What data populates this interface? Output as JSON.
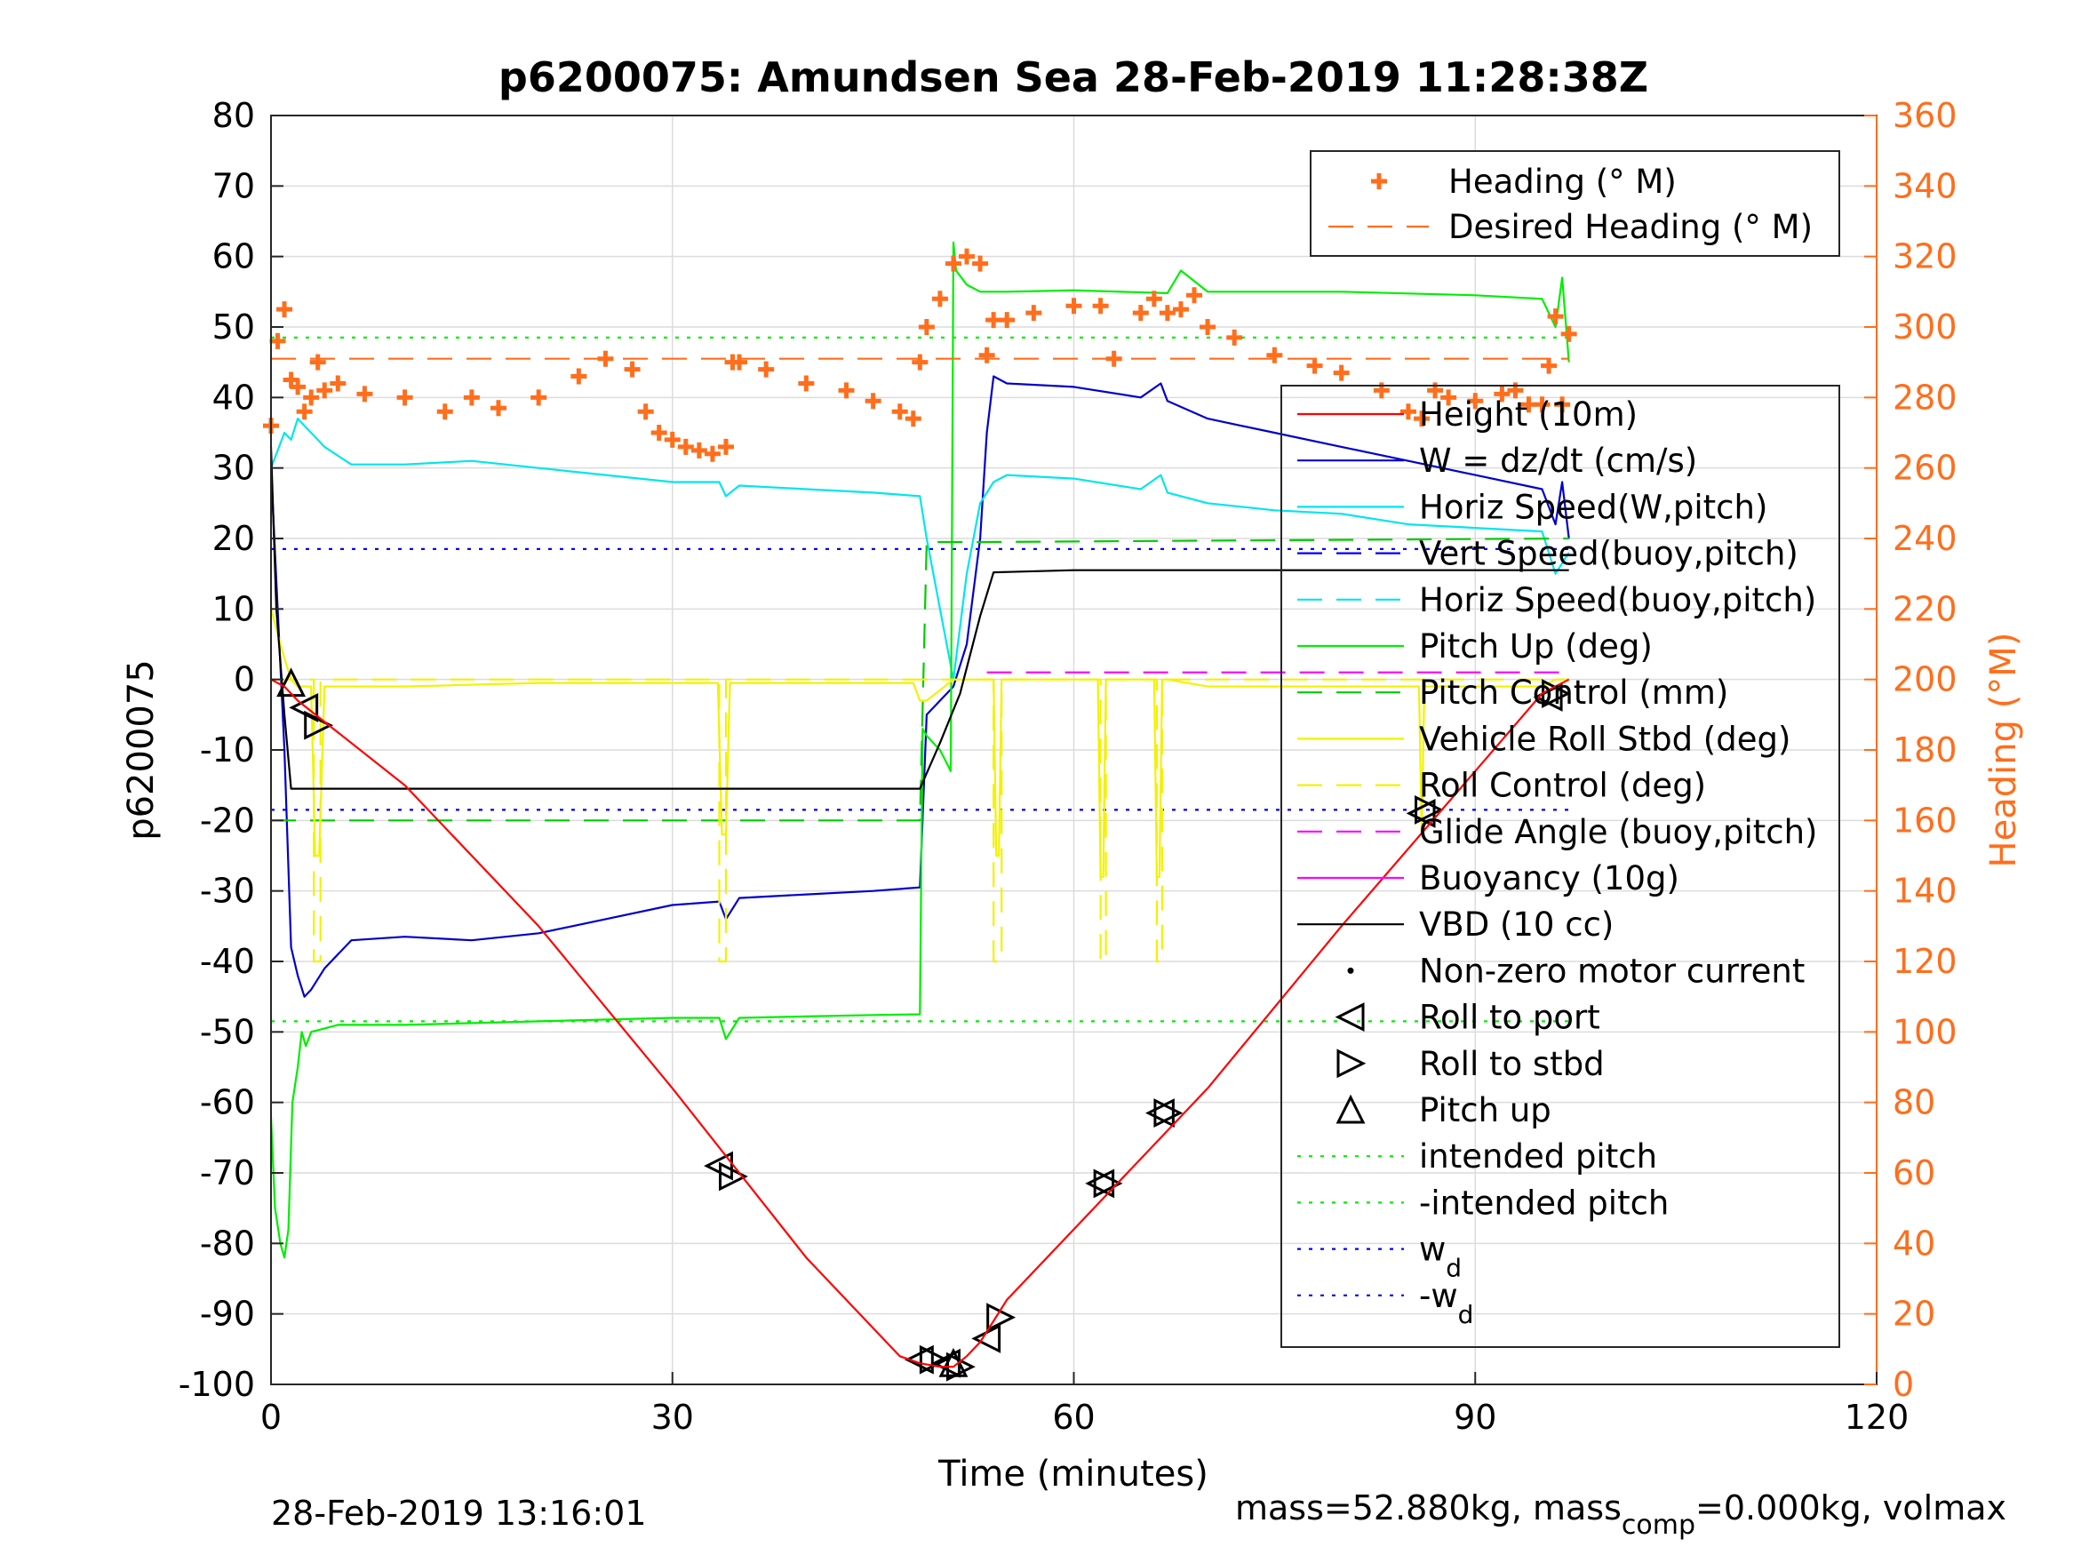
{
  "chart_data": {
    "type": "line",
    "title": "p6200075: Amundsen Sea 28-Feb-2019 11:28:38Z",
    "xlabel": "Time (minutes)",
    "ylabel": "p6200075",
    "y2label": "Heading (°M)",
    "xlim": [
      0,
      120
    ],
    "ylim": [
      -100,
      80
    ],
    "y2lim": [
      0,
      360
    ],
    "xticks": [
      "0",
      "30",
      "60",
      "90",
      "120"
    ],
    "yticks": [
      "80",
      "70",
      "60",
      "50",
      "40",
      "30",
      "20",
      "10",
      "0",
      "-10",
      "-20",
      "-30",
      "-40",
      "-50",
      "-60",
      "-70",
      "-80",
      "-90",
      "-100"
    ],
    "y2ticks": [
      "360",
      "340",
      "320",
      "300",
      "280",
      "260",
      "240",
      "220",
      "200",
      "180",
      "160",
      "140",
      "120",
      "100",
      "80",
      "60",
      "40",
      "20",
      "0"
    ],
    "grid": true,
    "footer_left": "28-Feb-2019 13:16:01",
    "footer_right": {
      "a": "mass=52.880kg, mass",
      "sub": "comp",
      "b": "=0.000kg, volmax"
    },
    "legend_top": {
      "placement": "top-right",
      "entries": [
        {
          "label": "Heading (° M)"
        },
        {
          "label": "Desired Heading (° M)"
        }
      ]
    },
    "legend": {
      "placement": "right",
      "entries": [
        {
          "label": "Height (10m)"
        },
        {
          "label": "W = dz/dt (cm/s)"
        },
        {
          "label": "Horiz Speed(W,pitch)"
        },
        {
          "label": "Vert Speed(buoy,pitch)"
        },
        {
          "label": "Horiz Speed(buoy,pitch)"
        },
        {
          "label": "Pitch Up (deg)"
        },
        {
          "label": "Pitch Control (mm)"
        },
        {
          "label": "Vehicle Roll Stbd (deg)"
        },
        {
          "label": "Roll Control (deg)"
        },
        {
          "label": "Glide Angle (buoy,pitch)"
        },
        {
          "label": "Buoyancy (10g)"
        },
        {
          "label": "VBD (10 cc)"
        },
        {
          "label": "Non-zero motor current"
        },
        {
          "label": "Roll to port"
        },
        {
          "label": "Roll to stbd"
        },
        {
          "label": "Pitch up"
        },
        {
          "label": "intended pitch"
        },
        {
          "label": "-intended pitch"
        },
        {
          "label": "w",
          "sub": "d"
        },
        {
          "label": "-w",
          "sub": "d"
        }
      ]
    },
    "series": [
      {
        "name": "Height (10m)",
        "color": "#ff0000",
        "axis": "left",
        "style": "solid",
        "x": [
          0,
          1,
          2,
          10,
          20,
          30,
          40,
          47,
          48.5,
          50,
          51,
          52,
          53,
          54,
          55,
          60,
          70,
          80,
          90,
          95,
          97
        ],
        "y": [
          0,
          -1,
          -3,
          -15,
          -35,
          -58,
          -82,
          -96,
          -97,
          -97.5,
          -97.5,
          -96,
          -94,
          -91,
          -88,
          -78,
          -58,
          -35,
          -13,
          -2,
          0
        ]
      },
      {
        "name": "W = dz/dt (cm/s)",
        "color": "#0000cc",
        "axis": "left",
        "style": "solid",
        "x": [
          0,
          0.5,
          1,
          1.5,
          2,
          2.5,
          3,
          4,
          6,
          10,
          15,
          20,
          25,
          30,
          33.5,
          34,
          35,
          40,
          45,
          48.5,
          49,
          50,
          51,
          52,
          53,
          53.5,
          54,
          55,
          60,
          65,
          66.5,
          67,
          70,
          75,
          80,
          85,
          90,
          95,
          96,
          96.5,
          97
        ],
        "y": [
          30,
          10,
          -10,
          -38,
          -42,
          -45,
          -44,
          -41,
          -37,
          -36.5,
          -37,
          -36,
          -34,
          -32,
          -31.5,
          -34,
          -31,
          -30.5,
          -30,
          -29.5,
          -5,
          -3,
          -1,
          5,
          20,
          35,
          43,
          42,
          41.5,
          40,
          42,
          39.5,
          37,
          35,
          33,
          31,
          29,
          27,
          22,
          28,
          20
        ]
      },
      {
        "name": "Horiz Speed(W,pitch)",
        "color": "#00e5ee",
        "axis": "left",
        "style": "solid",
        "x": [
          0,
          1,
          1.5,
          2,
          2.5,
          3,
          4,
          6,
          10,
          15,
          20,
          25,
          30,
          33.5,
          34,
          35,
          40,
          45,
          48.5,
          49,
          50,
          51,
          52,
          53,
          54,
          55,
          60,
          65,
          66.5,
          67,
          70,
          75,
          80,
          85,
          90,
          95,
          96,
          97
        ],
        "y": [
          30,
          35,
          34,
          37,
          36,
          35,
          33,
          30.5,
          30.5,
          31,
          30,
          29,
          28,
          28,
          26,
          27.5,
          27,
          26.5,
          26,
          20,
          10,
          0,
          15,
          25,
          28,
          29,
          28.5,
          27,
          29,
          26.5,
          25,
          24,
          23.5,
          22,
          21.5,
          21,
          15,
          18
        ]
      },
      {
        "name": "Vert Speed(buoy,pitch)",
        "color": "#0000ff",
        "axis": "left",
        "style": "dotted",
        "x": [
          0,
          97
        ],
        "y": [
          18.5,
          18.5
        ]
      },
      {
        "name": "-w_d",
        "color": "#0000ff",
        "axis": "left",
        "style": "dotted",
        "x": [
          0,
          97
        ],
        "y": [
          -18.5,
          -18.5
        ]
      },
      {
        "name": "Pitch Up (deg)",
        "color": "#00ee00",
        "axis": "left",
        "style": "solid",
        "x": [
          0,
          0.3,
          0.7,
          1,
          1.3,
          1.6,
          2,
          2.3,
          2.6,
          3,
          4,
          5,
          10,
          20,
          30,
          33.5,
          34,
          35,
          40,
          45,
          48.5,
          48.7,
          49,
          50,
          50.8,
          51,
          51.2,
          52,
          53,
          55,
          60,
          67,
          68,
          70,
          80,
          90,
          95,
          96,
          96.5,
          97
        ],
        "y": [
          -62,
          -75,
          -80,
          -82,
          -78,
          -60,
          -55,
          -50,
          -52,
          -50,
          -49.5,
          -49,
          -49,
          -48.5,
          -48,
          -48,
          -51,
          -48,
          -47.8,
          -47.6,
          -47.5,
          -7,
          -8,
          -10,
          -13,
          62,
          58,
          56,
          55,
          55,
          55.2,
          54.8,
          58,
          55,
          55,
          54.5,
          54,
          50,
          57,
          45
        ]
      },
      {
        "name": "intended pitch",
        "color": "#00ee00",
        "axis": "left",
        "style": "dotted",
        "x": [
          0,
          97
        ],
        "y": [
          48.5,
          48.5
        ]
      },
      {
        "name": "-intended pitch",
        "color": "#00ee00",
        "axis": "left",
        "style": "dotted",
        "x": [
          0,
          97
        ],
        "y": [
          -48.5,
          -48.5
        ]
      },
      {
        "name": "Pitch Control (mm)",
        "color": "#00cc00",
        "axis": "left",
        "style": "dashed",
        "x": [
          0,
          1,
          1.5,
          48.5,
          49,
          53,
          97
        ],
        "y": [
          -20,
          -20,
          -20,
          -20,
          19.5,
          19.5,
          20
        ]
      },
      {
        "name": "Vehicle Roll Stbd (deg)",
        "color": "#f2f200",
        "axis": "left",
        "style": "solid",
        "x": [
          0,
          1,
          1.5,
          2,
          3,
          3.3,
          3.6,
          4,
          5,
          10,
          20,
          30,
          33.4,
          33.7,
          34,
          34.3,
          35,
          40,
          48,
          48.5,
          49,
          51,
          54,
          54.2,
          54.4,
          54.6,
          55,
          61.8,
          62,
          62.2,
          62.4,
          66,
          66.2,
          66.4,
          66.6,
          67,
          70,
          80,
          85.8,
          86,
          86.2,
          90,
          95,
          96,
          97
        ],
        "y": [
          10,
          3,
          0,
          -1,
          -1,
          -25,
          -25,
          -1,
          -1,
          -1,
          -0.5,
          -0.5,
          -0.5,
          -22,
          -22,
          -0.5,
          -0.5,
          -0.5,
          -0.5,
          -3,
          -3,
          0,
          0,
          -25,
          -25,
          0,
          0,
          0,
          -28,
          -28,
          0,
          0,
          -28,
          -28,
          0,
          0,
          -1,
          -1,
          -1,
          -22,
          -1,
          -1,
          -1,
          0,
          0
        ]
      },
      {
        "name": "Roll Control (deg)",
        "color": "#f2f200",
        "axis": "left",
        "style": "dashed",
        "x": [
          0,
          3.2,
          3.2,
          3.7,
          3.7,
          33.5,
          33.5,
          34,
          34,
          54,
          54,
          54.6,
          54.6,
          62,
          62,
          62.4,
          62.4,
          66.2,
          66.2,
          66.6,
          66.6,
          97
        ],
        "y": [
          0,
          0,
          -40,
          -40,
          0,
          0,
          -40,
          -40,
          0,
          0,
          -40,
          -40,
          0,
          0,
          -40,
          -40,
          0,
          0,
          -40,
          -40,
          0,
          0
        ]
      },
      {
        "name": "Glide Angle (buoy,pitch)",
        "color": "#ff00ff",
        "axis": "left",
        "style": "dashed",
        "x": [
          53.5,
          97
        ],
        "y": [
          1,
          1
        ]
      },
      {
        "name": "VBD (10 cc)",
        "color": "#000000",
        "axis": "left",
        "style": "solid",
        "x": [
          0,
          0.4,
          1,
          1.5,
          48.5,
          50,
          51.5,
          53,
          54,
          56,
          60,
          97
        ],
        "y": [
          33,
          10,
          -5,
          -15.5,
          -15.5,
          -9,
          -2,
          9,
          15.2,
          15.3,
          15.5,
          15.5
        ]
      },
      {
        "name": "Heading (° M)",
        "color": "#ff6e1c",
        "axis": "right",
        "style": "marker",
        "x": [
          0,
          0.5,
          1,
          1.5,
          2,
          2.5,
          3,
          3.5,
          4,
          5,
          7,
          10,
          13,
          15,
          17,
          20,
          23,
          25,
          27,
          28,
          29,
          30,
          31,
          32,
          33,
          34,
          34.5,
          35,
          37,
          40,
          43,
          45,
          47,
          48,
          48.5,
          49,
          50,
          51,
          52,
          53,
          53.5,
          54,
          55,
          57,
          60,
          62,
          63,
          65,
          66,
          67,
          68,
          69,
          70,
          72,
          75,
          78,
          80,
          83,
          85,
          86,
          87,
          88,
          90,
          92,
          93,
          94,
          95,
          95.5,
          96,
          96.5,
          97
        ],
        "y": [
          272,
          296,
          305,
          285,
          283,
          276,
          280,
          290,
          282,
          284,
          281,
          280,
          276,
          280,
          277,
          280,
          286,
          291,
          288,
          276,
          270,
          268,
          266,
          265,
          264,
          266,
          290,
          290,
          288,
          284,
          282,
          279,
          276,
          274,
          290,
          300,
          308,
          318,
          320,
          318,
          292,
          302,
          302,
          304,
          306,
          306,
          291,
          304,
          308,
          304,
          305,
          309,
          300,
          297,
          292,
          289,
          287,
          282,
          276,
          274,
          282,
          280,
          279,
          281,
          282,
          278,
          278,
          289,
          303,
          278,
          298
        ]
      },
      {
        "name": "Desired Heading (° M)",
        "color": "#ff6e1c",
        "axis": "right",
        "style": "dashed",
        "x": [
          0,
          97
        ],
        "y": [
          291,
          291
        ]
      },
      {
        "name": "Roll to port",
        "color": "#000000",
        "axis": "left",
        "style": "marker",
        "x": [
          2.5,
          33.5,
          48.5,
          50.5,
          53.5,
          62,
          66.5,
          86,
          95.5
        ],
        "y": [
          -4,
          -69,
          -96.5,
          -97,
          -93.5,
          -71.5,
          -61.5,
          -19,
          -2.5
        ]
      },
      {
        "name": "Roll to stbd",
        "color": "#000000",
        "axis": "left",
        "style": "marker",
        "x": [
          3.5,
          34.5,
          49.5,
          51.5,
          54.5,
          62.5,
          67,
          86.5,
          96
        ],
        "y": [
          -6.5,
          -70.5,
          -96.5,
          -97.5,
          -90.5,
          -71.5,
          -61.5,
          -18.5,
          -2
        ]
      },
      {
        "name": "Pitch up",
        "color": "#000000",
        "axis": "left",
        "style": "marker",
        "x": [
          1.5,
          51
        ],
        "y": [
          -0.5,
          -97
        ]
      }
    ]
  }
}
